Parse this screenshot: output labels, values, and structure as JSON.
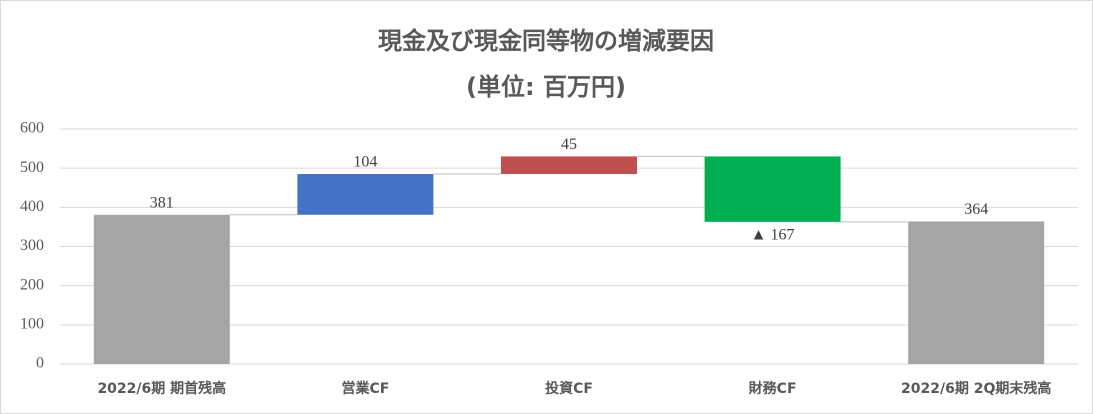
{
  "chart_data": {
    "type": "waterfall",
    "title": "現金及び現金同等物の増減要因",
    "subtitle": "(単位: 百万円)",
    "categories": [
      "2022/6期  期首残高",
      "営業CF",
      "投資CF",
      "財務CF",
      "2022/6期 2Q期末残高"
    ],
    "values": [
      381,
      104,
      45,
      -167,
      364
    ],
    "value_labels": [
      "381",
      "104",
      "45",
      "▲ 167",
      "364"
    ],
    "measure": [
      "absolute",
      "relative",
      "relative",
      "relative",
      "absolute"
    ],
    "colors": [
      "#a5a5a5",
      "#4472c4",
      "#c0504d",
      "#00b050",
      "#a5a5a5"
    ],
    "ylim": [
      0,
      600
    ],
    "yticks": [
      0,
      100,
      200,
      300,
      400,
      500,
      600
    ],
    "grid": true
  }
}
